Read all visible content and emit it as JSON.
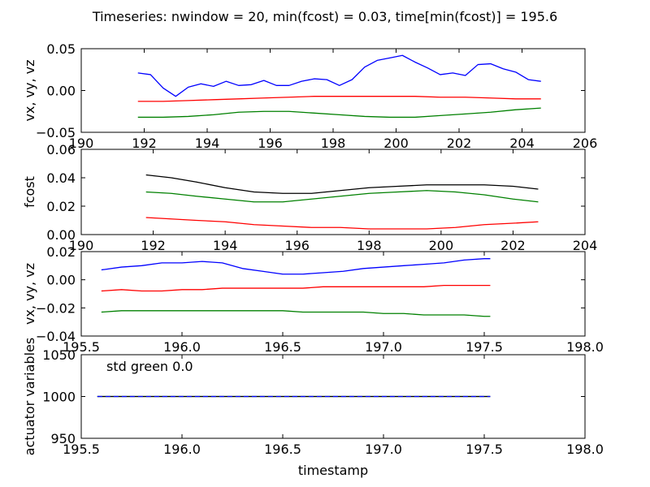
{
  "figure": {
    "title": "Timeseries: nwindow = 20, min(fcost) = 0.03, time[min(fcost)] = 195.6"
  },
  "chart_data": [
    {
      "type": "line",
      "ylabel": "vx, vy, vz",
      "xlabel": "",
      "xlim": [
        190,
        206
      ],
      "ylim": [
        -0.05,
        0.05
      ],
      "xticks": [
        190,
        192,
        194,
        196,
        198,
        200,
        202,
        204,
        206
      ],
      "xtick_labels": [
        "190",
        "192",
        "194",
        "196",
        "198",
        "200",
        "202",
        "204",
        "206"
      ],
      "yticks": [
        -0.05,
        0.0,
        0.05
      ],
      "ytick_labels": [
        "−0.05",
        "0.00",
        "0.05"
      ],
      "series": [
        {
          "color": "#0000ff",
          "x": [
            191.8,
            192.2,
            192.6,
            193.0,
            193.4,
            193.8,
            194.2,
            194.6,
            195.0,
            195.4,
            195.8,
            196.2,
            196.6,
            197.0,
            197.4,
            197.8,
            198.2,
            198.6,
            199.0,
            199.4,
            199.8,
            200.2,
            200.6,
            201.0,
            201.4,
            201.8,
            202.2,
            202.6,
            203.0,
            203.4,
            203.8,
            204.2,
            204.6
          ],
          "y": [
            0.021,
            0.019,
            0.003,
            -0.007,
            0.004,
            0.008,
            0.005,
            0.011,
            0.006,
            0.007,
            0.012,
            0.006,
            0.006,
            0.011,
            0.014,
            0.013,
            0.006,
            0.013,
            0.028,
            0.036,
            0.039,
            0.042,
            0.034,
            0.027,
            0.019,
            0.021,
            0.018,
            0.031,
            0.032,
            0.026,
            0.022,
            0.013,
            0.011
          ]
        },
        {
          "color": "#ff0000",
          "x": [
            191.8,
            192.6,
            193.4,
            194.2,
            195.0,
            195.8,
            196.6,
            197.4,
            198.2,
            199.0,
            199.8,
            200.6,
            201.4,
            202.2,
            203.0,
            203.8,
            204.6
          ],
          "y": [
            -0.013,
            -0.013,
            -0.012,
            -0.011,
            -0.01,
            -0.009,
            -0.008,
            -0.007,
            -0.007,
            -0.007,
            -0.007,
            -0.007,
            -0.008,
            -0.008,
            -0.009,
            -0.01,
            -0.01
          ]
        },
        {
          "color": "#008000",
          "x": [
            191.8,
            192.6,
            193.4,
            194.2,
            195.0,
            195.8,
            196.6,
            197.4,
            198.2,
            199.0,
            199.8,
            200.6,
            201.4,
            202.2,
            203.0,
            203.8,
            204.6
          ],
          "y": [
            -0.032,
            -0.032,
            -0.031,
            -0.029,
            -0.026,
            -0.025,
            -0.025,
            -0.027,
            -0.029,
            -0.031,
            -0.032,
            -0.032,
            -0.03,
            -0.028,
            -0.026,
            -0.023,
            -0.021
          ]
        }
      ]
    },
    {
      "type": "line",
      "ylabel": "fcost",
      "xlabel": "",
      "xlim": [
        190,
        204
      ],
      "ylim": [
        0.0,
        0.06
      ],
      "xticks": [
        190,
        192,
        194,
        196,
        198,
        200,
        202,
        204
      ],
      "xtick_labels": [
        "190",
        "192",
        "194",
        "196",
        "198",
        "200",
        "202",
        "204"
      ],
      "yticks": [
        0.0,
        0.02,
        0.04,
        0.06
      ],
      "ytick_labels": [
        "0.00",
        "0.02",
        "0.04",
        "0.06"
      ],
      "series": [
        {
          "color": "#000000",
          "x": [
            191.8,
            192.5,
            193.2,
            194.0,
            194.8,
            195.6,
            196.4,
            197.2,
            198.0,
            198.8,
            199.6,
            200.4,
            201.2,
            202.0,
            202.7
          ],
          "y": [
            0.042,
            0.04,
            0.037,
            0.033,
            0.03,
            0.029,
            0.029,
            0.031,
            0.033,
            0.034,
            0.035,
            0.035,
            0.035,
            0.034,
            0.032
          ]
        },
        {
          "color": "#008000",
          "x": [
            191.8,
            192.5,
            193.2,
            194.0,
            194.8,
            195.6,
            196.4,
            197.2,
            198.0,
            198.8,
            199.6,
            200.4,
            201.2,
            202.0,
            202.7
          ],
          "y": [
            0.03,
            0.029,
            0.027,
            0.025,
            0.023,
            0.023,
            0.025,
            0.027,
            0.029,
            0.03,
            0.031,
            0.03,
            0.028,
            0.025,
            0.023
          ]
        },
        {
          "color": "#ff0000",
          "x": [
            191.8,
            192.5,
            193.2,
            194.0,
            194.8,
            195.6,
            196.4,
            197.2,
            198.0,
            198.8,
            199.6,
            200.4,
            201.2,
            202.0,
            202.7
          ],
          "y": [
            0.012,
            0.011,
            0.01,
            0.009,
            0.007,
            0.006,
            0.005,
            0.005,
            0.004,
            0.004,
            0.004,
            0.005,
            0.007,
            0.008,
            0.009
          ]
        }
      ]
    },
    {
      "type": "line",
      "ylabel": "vx, vy, vz",
      "xlabel": "",
      "xlim": [
        195.5,
        198.0
      ],
      "ylim": [
        -0.04,
        0.02
      ],
      "xticks": [
        195.5,
        196.0,
        196.5,
        197.0,
        197.5,
        198.0
      ],
      "xtick_labels": [
        "195.5",
        "196.0",
        "196.5",
        "197.0",
        "197.5",
        "198.0"
      ],
      "yticks": [
        -0.04,
        -0.02,
        0.0,
        0.02
      ],
      "ytick_labels": [
        "−0.04",
        "−0.02",
        "0.00",
        "0.02"
      ],
      "series": [
        {
          "color": "#0000ff",
          "x": [
            195.6,
            195.7,
            195.8,
            195.9,
            196.0,
            196.1,
            196.2,
            196.3,
            196.4,
            196.5,
            196.6,
            196.7,
            196.8,
            196.9,
            197.0,
            197.1,
            197.2,
            197.3,
            197.4,
            197.5,
            197.53
          ],
          "y": [
            0.007,
            0.009,
            0.01,
            0.012,
            0.012,
            0.013,
            0.012,
            0.008,
            0.006,
            0.004,
            0.004,
            0.005,
            0.006,
            0.008,
            0.009,
            0.01,
            0.011,
            0.012,
            0.014,
            0.015,
            0.015
          ]
        },
        {
          "color": "#ff0000",
          "x": [
            195.6,
            195.7,
            195.8,
            195.9,
            196.0,
            196.1,
            196.2,
            196.3,
            196.4,
            196.5,
            196.6,
            196.7,
            196.8,
            196.9,
            197.0,
            197.1,
            197.2,
            197.3,
            197.4,
            197.5,
            197.53
          ],
          "y": [
            -0.008,
            -0.007,
            -0.008,
            -0.008,
            -0.007,
            -0.007,
            -0.006,
            -0.006,
            -0.006,
            -0.006,
            -0.006,
            -0.005,
            -0.005,
            -0.005,
            -0.005,
            -0.005,
            -0.005,
            -0.004,
            -0.004,
            -0.004,
            -0.004
          ]
        },
        {
          "color": "#008000",
          "x": [
            195.6,
            195.7,
            195.8,
            195.9,
            196.0,
            196.1,
            196.2,
            196.3,
            196.4,
            196.5,
            196.6,
            196.7,
            196.8,
            196.9,
            197.0,
            197.1,
            197.2,
            197.3,
            197.4,
            197.5,
            197.53
          ],
          "y": [
            -0.023,
            -0.022,
            -0.022,
            -0.022,
            -0.022,
            -0.022,
            -0.022,
            -0.022,
            -0.022,
            -0.022,
            -0.023,
            -0.023,
            -0.023,
            -0.023,
            -0.024,
            -0.024,
            -0.025,
            -0.025,
            -0.025,
            -0.026,
            -0.026
          ]
        }
      ]
    },
    {
      "type": "line",
      "ylabel": "actuator variables",
      "xlabel": "timestamp",
      "xlim": [
        195.5,
        198.0
      ],
      "ylim": [
        950,
        1050
      ],
      "xticks": [
        195.5,
        196.0,
        196.5,
        197.0,
        197.5,
        198.0
      ],
      "xtick_labels": [
        "195.5",
        "196.0",
        "196.5",
        "197.0",
        "197.5",
        "198.0"
      ],
      "yticks": [
        950,
        1000,
        1050
      ],
      "ytick_labels": [
        "950",
        "1000",
        "1050"
      ],
      "annotation": "std green 0.0",
      "series": [
        {
          "color": "#008000",
          "dashed": false,
          "x": [
            195.58,
            197.53
          ],
          "y": [
            1000,
            1000
          ]
        },
        {
          "color": "#000000",
          "dashed": false,
          "x": [
            195.58,
            197.53
          ],
          "y": [
            1000,
            1000
          ]
        },
        {
          "color": "#0000ff",
          "dashed": true,
          "x": [
            195.58,
            197.53
          ],
          "y": [
            1000,
            1000
          ]
        }
      ]
    }
  ]
}
